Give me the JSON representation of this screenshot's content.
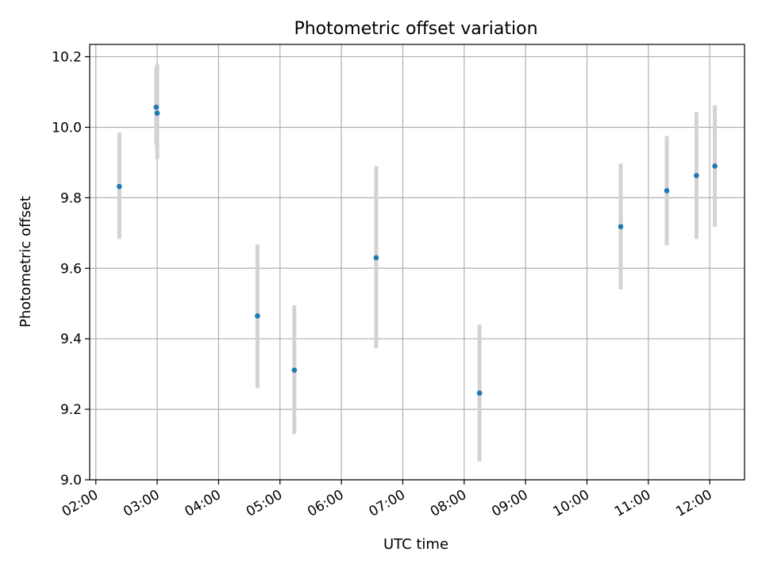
{
  "chart_data": {
    "type": "scatter",
    "title": "Photometric offset variation",
    "xlabel": "UTC time",
    "ylabel": "Photometric offset",
    "x_ticks": [
      "02:00",
      "03:00",
      "04:00",
      "05:00",
      "06:00",
      "07:00",
      "08:00",
      "09:00",
      "10:00",
      "11:00",
      "12:00"
    ],
    "y_ticks": [
      "9.0",
      "9.2",
      "9.4",
      "9.6",
      "9.8",
      "10.0",
      "10.2"
    ],
    "xlim": [
      "01:54",
      "12:34"
    ],
    "ylim": [
      9.0,
      10.235
    ],
    "grid": true,
    "colors": {
      "point": "#1f77b4",
      "errorbar": "#d3d3d3",
      "grid": "#b0b0b0"
    },
    "series": [
      {
        "points": [
          {
            "x": "02:23",
            "y": 9.832,
            "lo": 9.683,
            "hi": 9.985
          },
          {
            "x": "02:59",
            "y": 10.057,
            "lo": 9.95,
            "hi": 10.17
          },
          {
            "x": "03:00",
            "y": 10.04,
            "lo": 9.91,
            "hi": 10.178
          },
          {
            "x": "04:38",
            "y": 9.465,
            "lo": 9.26,
            "hi": 9.668
          },
          {
            "x": "05:14",
            "y": 9.311,
            "lo": 9.13,
            "hi": 9.495
          },
          {
            "x": "06:34",
            "y": 9.63,
            "lo": 9.373,
            "hi": 9.89
          },
          {
            "x": "08:15",
            "y": 9.246,
            "lo": 9.052,
            "hi": 9.44
          },
          {
            "x": "10:33",
            "y": 9.718,
            "lo": 9.54,
            "hi": 9.897
          },
          {
            "x": "11:18",
            "y": 9.82,
            "lo": 9.665,
            "hi": 9.975
          },
          {
            "x": "11:47",
            "y": 9.863,
            "lo": 9.683,
            "hi": 10.043
          },
          {
            "x": "12:05",
            "y": 9.89,
            "lo": 9.718,
            "hi": 10.062
          }
        ]
      }
    ]
  }
}
